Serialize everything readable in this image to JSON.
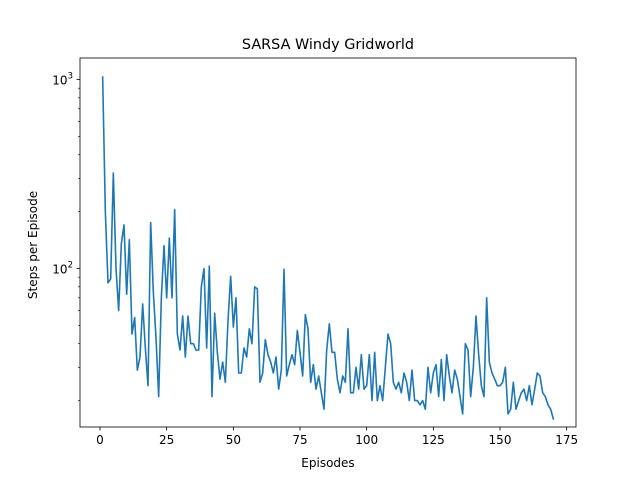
{
  "chart_data": {
    "type": "line",
    "title": "SARSA Windy Gridworld",
    "xlabel": "Episodes",
    "ylabel": "Steps per Episode",
    "xscale": "linear",
    "yscale": "log",
    "xlim": [
      -7.5,
      178.5
    ],
    "ylim": [
      14.5,
      1300
    ],
    "grid": false,
    "legend": "none",
    "xticks": [
      {
        "value": 0,
        "label": "0"
      },
      {
        "value": 25,
        "label": "25"
      },
      {
        "value": 50,
        "label": "50"
      },
      {
        "value": 75,
        "label": "75"
      },
      {
        "value": 100,
        "label": "100"
      },
      {
        "value": 125,
        "label": "125"
      },
      {
        "value": 150,
        "label": "150"
      },
      {
        "value": 175,
        "label": "175"
      }
    ],
    "yticks": [
      {
        "value": 100,
        "base": "10",
        "exp": "2"
      },
      {
        "value": 1000,
        "base": "10",
        "exp": "3"
      }
    ],
    "line_color": "#1f77b4",
    "series": [
      {
        "x_start": 1,
        "x_step": 1,
        "values": [
          1030,
          200,
          84,
          88,
          320,
          100,
          60,
          135,
          170,
          73,
          142,
          45,
          55,
          29,
          34,
          65,
          38,
          24,
          175,
          75,
          43,
          21,
          70,
          132,
          70,
          145,
          70,
          205,
          45,
          37,
          56,
          34,
          56,
          40,
          40,
          37,
          37,
          80,
          100,
          38,
          103,
          21,
          58,
          36,
          26,
          32,
          25,
          53,
          91,
          49,
          70,
          28,
          28,
          38,
          34,
          48,
          40,
          80,
          78,
          25,
          28,
          42,
          35,
          32,
          28,
          34,
          23,
          29,
          99,
          27,
          31,
          35,
          31,
          47,
          36,
          27,
          57,
          48,
          25,
          31,
          23,
          27,
          22,
          18,
          37,
          51,
          36,
          36,
          26,
          22,
          27,
          25,
          48,
          22,
          22,
          30,
          23,
          35,
          23,
          24,
          35,
          20,
          36,
          20,
          24,
          20,
          30,
          45,
          40,
          25,
          23,
          25,
          22,
          28,
          25,
          20,
          29,
          20,
          20,
          19,
          20,
          18,
          30,
          22,
          28,
          31,
          21,
          33,
          20,
          35,
          27,
          22,
          29,
          26,
          21,
          17,
          40,
          37,
          21,
          30,
          56,
          35,
          24,
          21,
          70,
          32,
          28,
          26,
          24,
          24,
          25,
          30,
          17,
          18,
          25,
          18,
          20,
          22,
          23,
          20,
          24,
          19,
          23,
          28,
          27,
          22,
          21,
          19,
          18,
          16
        ]
      }
    ]
  }
}
